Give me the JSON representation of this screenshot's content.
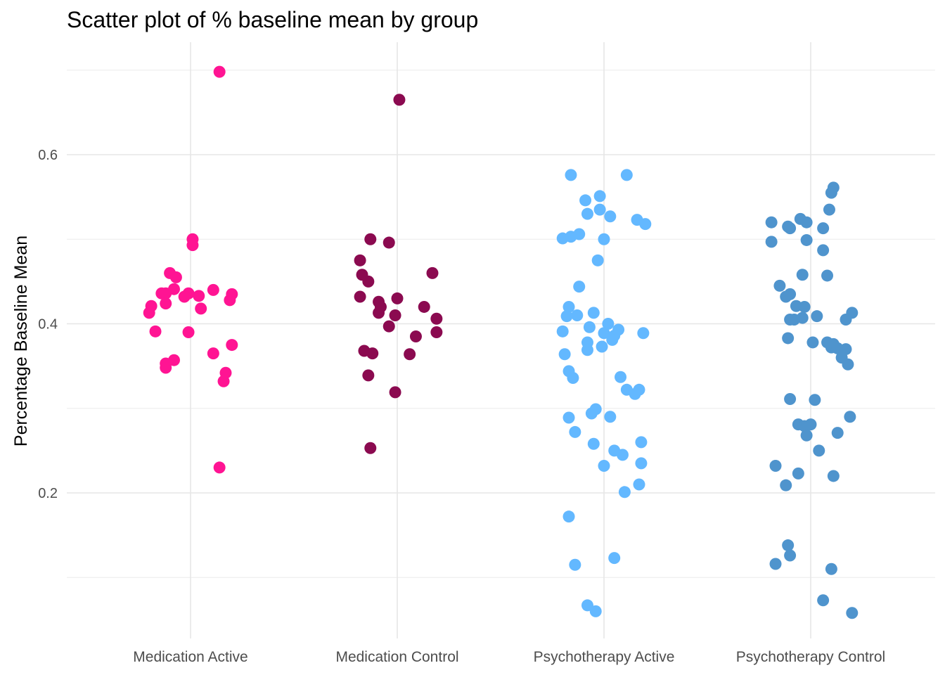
{
  "chart_data": {
    "type": "scatter",
    "title": "Scatter plot of % baseline mean by group",
    "xlabel": "",
    "ylabel": "Percentage Baseline Mean",
    "categories": [
      "Medication Active",
      "Medication Control",
      "Psychotherapy Active",
      "Psychotherapy Control"
    ],
    "y_ticks": [
      0.2,
      0.4,
      0.6
    ],
    "y_tick_labels": [
      "0.2",
      "0.4",
      "0.6"
    ],
    "ylim": [
      0.04,
      0.72
    ],
    "grid": true,
    "legend": "none",
    "series": [
      {
        "category": "Medication Active",
        "color": "#FF1493",
        "points": [
          {
            "x": 0.14,
            "y": 0.698
          },
          {
            "x": 0.01,
            "y": 0.5
          },
          {
            "x": 0.01,
            "y": 0.493
          },
          {
            "x": -0.1,
            "y": 0.46
          },
          {
            "x": -0.07,
            "y": 0.455
          },
          {
            "x": -0.08,
            "y": 0.441
          },
          {
            "x": -0.14,
            "y": 0.436
          },
          {
            "x": -0.12,
            "y": 0.436
          },
          {
            "x": -0.01,
            "y": 0.436
          },
          {
            "x": 0.04,
            "y": 0.433
          },
          {
            "x": -0.03,
            "y": 0.432
          },
          {
            "x": 0.11,
            "y": 0.44
          },
          {
            "x": 0.2,
            "y": 0.435
          },
          {
            "x": 0.19,
            "y": 0.428
          },
          {
            "x": -0.12,
            "y": 0.424
          },
          {
            "x": -0.19,
            "y": 0.421
          },
          {
            "x": 0.05,
            "y": 0.418
          },
          {
            "x": -0.2,
            "y": 0.413
          },
          {
            "x": -0.17,
            "y": 0.391
          },
          {
            "x": -0.01,
            "y": 0.39
          },
          {
            "x": 0.2,
            "y": 0.375
          },
          {
            "x": 0.11,
            "y": 0.365
          },
          {
            "x": -0.08,
            "y": 0.357
          },
          {
            "x": -0.12,
            "y": 0.353
          },
          {
            "x": -0.12,
            "y": 0.348
          },
          {
            "x": 0.17,
            "y": 0.342
          },
          {
            "x": 0.16,
            "y": 0.332
          },
          {
            "x": 0.14,
            "y": 0.23
          }
        ]
      },
      {
        "category": "Medication Control",
        "color": "#8B0A50",
        "points": [
          {
            "x": 0.01,
            "y": 0.665
          },
          {
            "x": -0.13,
            "y": 0.5
          },
          {
            "x": -0.04,
            "y": 0.496
          },
          {
            "x": -0.18,
            "y": 0.475
          },
          {
            "x": 0.17,
            "y": 0.46
          },
          {
            "x": -0.17,
            "y": 0.458
          },
          {
            "x": -0.14,
            "y": 0.45
          },
          {
            "x": -0.18,
            "y": 0.432
          },
          {
            "x": 0.0,
            "y": 0.43
          },
          {
            "x": -0.09,
            "y": 0.426
          },
          {
            "x": -0.08,
            "y": 0.42
          },
          {
            "x": 0.13,
            "y": 0.42
          },
          {
            "x": -0.09,
            "y": 0.413
          },
          {
            "x": -0.01,
            "y": 0.41
          },
          {
            "x": 0.19,
            "y": 0.406
          },
          {
            "x": -0.04,
            "y": 0.397
          },
          {
            "x": 0.19,
            "y": 0.39
          },
          {
            "x": 0.09,
            "y": 0.385
          },
          {
            "x": -0.16,
            "y": 0.368
          },
          {
            "x": -0.12,
            "y": 0.365
          },
          {
            "x": 0.06,
            "y": 0.364
          },
          {
            "x": -0.14,
            "y": 0.339
          },
          {
            "x": -0.01,
            "y": 0.319
          },
          {
            "x": -0.13,
            "y": 0.253
          }
        ]
      },
      {
        "category": "Psychotherapy Active",
        "color": "#63B8FF",
        "points": [
          {
            "x": -0.16,
            "y": 0.576
          },
          {
            "x": 0.11,
            "y": 0.576
          },
          {
            "x": -0.09,
            "y": 0.546
          },
          {
            "x": -0.02,
            "y": 0.551
          },
          {
            "x": -0.08,
            "y": 0.53
          },
          {
            "x": -0.02,
            "y": 0.535
          },
          {
            "x": 0.03,
            "y": 0.527
          },
          {
            "x": 0.16,
            "y": 0.523
          },
          {
            "x": 0.2,
            "y": 0.518
          },
          {
            "x": -0.12,
            "y": 0.506
          },
          {
            "x": -0.16,
            "y": 0.503
          },
          {
            "x": -0.2,
            "y": 0.501
          },
          {
            "x": 0.0,
            "y": 0.5
          },
          {
            "x": -0.03,
            "y": 0.475
          },
          {
            "x": -0.12,
            "y": 0.444
          },
          {
            "x": -0.17,
            "y": 0.42
          },
          {
            "x": -0.05,
            "y": 0.413
          },
          {
            "x": -0.13,
            "y": 0.41
          },
          {
            "x": -0.18,
            "y": 0.409
          },
          {
            "x": 0.02,
            "y": 0.4
          },
          {
            "x": -0.07,
            "y": 0.396
          },
          {
            "x": -0.2,
            "y": 0.391
          },
          {
            "x": 0.0,
            "y": 0.389
          },
          {
            "x": 0.07,
            "y": 0.393
          },
          {
            "x": 0.05,
            "y": 0.386
          },
          {
            "x": 0.04,
            "y": 0.381
          },
          {
            "x": 0.19,
            "y": 0.389
          },
          {
            "x": -0.08,
            "y": 0.378
          },
          {
            "x": -0.01,
            "y": 0.373
          },
          {
            "x": -0.08,
            "y": 0.369
          },
          {
            "x": -0.19,
            "y": 0.364
          },
          {
            "x": -0.17,
            "y": 0.344
          },
          {
            "x": -0.15,
            "y": 0.336
          },
          {
            "x": 0.08,
            "y": 0.337
          },
          {
            "x": 0.11,
            "y": 0.322
          },
          {
            "x": 0.17,
            "y": 0.322
          },
          {
            "x": 0.15,
            "y": 0.317
          },
          {
            "x": -0.04,
            "y": 0.299
          },
          {
            "x": -0.06,
            "y": 0.294
          },
          {
            "x": -0.17,
            "y": 0.289
          },
          {
            "x": 0.03,
            "y": 0.29
          },
          {
            "x": -0.14,
            "y": 0.272
          },
          {
            "x": 0.18,
            "y": 0.26
          },
          {
            "x": -0.05,
            "y": 0.258
          },
          {
            "x": 0.05,
            "y": 0.25
          },
          {
            "x": 0.09,
            "y": 0.245
          },
          {
            "x": 0.0,
            "y": 0.232
          },
          {
            "x": 0.18,
            "y": 0.235
          },
          {
            "x": 0.17,
            "y": 0.21
          },
          {
            "x": 0.1,
            "y": 0.201
          },
          {
            "x": -0.17,
            "y": 0.172
          },
          {
            "x": 0.05,
            "y": 0.123
          },
          {
            "x": -0.14,
            "y": 0.115
          },
          {
            "x": -0.08,
            "y": 0.067
          },
          {
            "x": -0.04,
            "y": 0.06
          }
        ]
      },
      {
        "category": "Psychotherapy Control",
        "color": "#4F94CD",
        "points": [
          {
            "x": 0.11,
            "y": 0.561
          },
          {
            "x": 0.1,
            "y": 0.555
          },
          {
            "x": 0.09,
            "y": 0.535
          },
          {
            "x": -0.05,
            "y": 0.524
          },
          {
            "x": -0.19,
            "y": 0.52
          },
          {
            "x": -0.02,
            "y": 0.52
          },
          {
            "x": -0.11,
            "y": 0.515
          },
          {
            "x": -0.1,
            "y": 0.513
          },
          {
            "x": 0.06,
            "y": 0.513
          },
          {
            "x": -0.19,
            "y": 0.497
          },
          {
            "x": -0.02,
            "y": 0.499
          },
          {
            "x": 0.06,
            "y": 0.487
          },
          {
            "x": -0.04,
            "y": 0.458
          },
          {
            "x": 0.08,
            "y": 0.457
          },
          {
            "x": -0.15,
            "y": 0.445
          },
          {
            "x": -0.1,
            "y": 0.435
          },
          {
            "x": -0.12,
            "y": 0.432
          },
          {
            "x": -0.07,
            "y": 0.421
          },
          {
            "x": -0.03,
            "y": 0.42
          },
          {
            "x": 0.2,
            "y": 0.413
          },
          {
            "x": -0.1,
            "y": 0.405
          },
          {
            "x": -0.08,
            "y": 0.405
          },
          {
            "x": -0.04,
            "y": 0.407
          },
          {
            "x": 0.03,
            "y": 0.409
          },
          {
            "x": 0.17,
            "y": 0.405
          },
          {
            "x": -0.11,
            "y": 0.383
          },
          {
            "x": 0.01,
            "y": 0.378
          },
          {
            "x": 0.08,
            "y": 0.378
          },
          {
            "x": 0.11,
            "y": 0.376
          },
          {
            "x": 0.1,
            "y": 0.372
          },
          {
            "x": 0.13,
            "y": 0.371
          },
          {
            "x": 0.17,
            "y": 0.37
          },
          {
            "x": 0.15,
            "y": 0.36
          },
          {
            "x": 0.18,
            "y": 0.352
          },
          {
            "x": -0.1,
            "y": 0.311
          },
          {
            "x": 0.02,
            "y": 0.31
          },
          {
            "x": -0.06,
            "y": 0.281
          },
          {
            "x": 0.0,
            "y": 0.281
          },
          {
            "x": -0.03,
            "y": 0.279
          },
          {
            "x": -0.02,
            "y": 0.268
          },
          {
            "x": 0.19,
            "y": 0.29
          },
          {
            "x": 0.13,
            "y": 0.271
          },
          {
            "x": 0.04,
            "y": 0.25
          },
          {
            "x": -0.17,
            "y": 0.232
          },
          {
            "x": -0.06,
            "y": 0.223
          },
          {
            "x": 0.11,
            "y": 0.22
          },
          {
            "x": -0.12,
            "y": 0.209
          },
          {
            "x": -0.11,
            "y": 0.138
          },
          {
            "x": -0.1,
            "y": 0.126
          },
          {
            "x": -0.17,
            "y": 0.116
          },
          {
            "x": 0.1,
            "y": 0.11
          },
          {
            "x": 0.06,
            "y": 0.073
          },
          {
            "x": 0.2,
            "y": 0.058
          }
        ]
      }
    ]
  }
}
